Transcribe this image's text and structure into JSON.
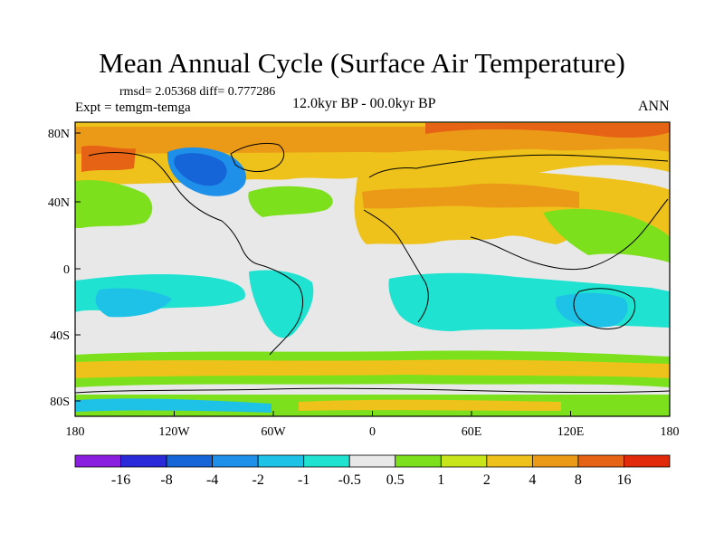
{
  "title": "Mean Annual Cycle (Surface Air Temperature)",
  "stats": {
    "rmsd_label": "rmsd= 2.05368 diff= 0.777286"
  },
  "experiment_label": "Expt = temgm-temga",
  "period_label": "12.0kyr BP - 00.0kyr BP",
  "season_label": "ANN",
  "axes": {
    "lat_ticks": [
      "80N",
      "40N",
      "0",
      "40S",
      "80S"
    ],
    "lon_ticks": [
      "180",
      "120W",
      "60W",
      "0",
      "60E",
      "120E",
      "180"
    ]
  },
  "colorbar": {
    "labels": [
      "-16",
      "-8",
      "-4",
      "-2",
      "-1",
      "-0.5",
      "0.5",
      "1",
      "2",
      "4",
      "8",
      "16"
    ],
    "colors": [
      "#8a1fe0",
      "#2a2ad8",
      "#1565d8",
      "#1e90ea",
      "#1ec2e6",
      "#1fe2d0",
      "#e8e8e8",
      "#7de01c",
      "#c8e41a",
      "#eec21a",
      "#eb9a18",
      "#e66214",
      "#e02a0a"
    ]
  },
  "palette": {
    "background": "#e8e8e8",
    "coast": "#000000"
  }
}
